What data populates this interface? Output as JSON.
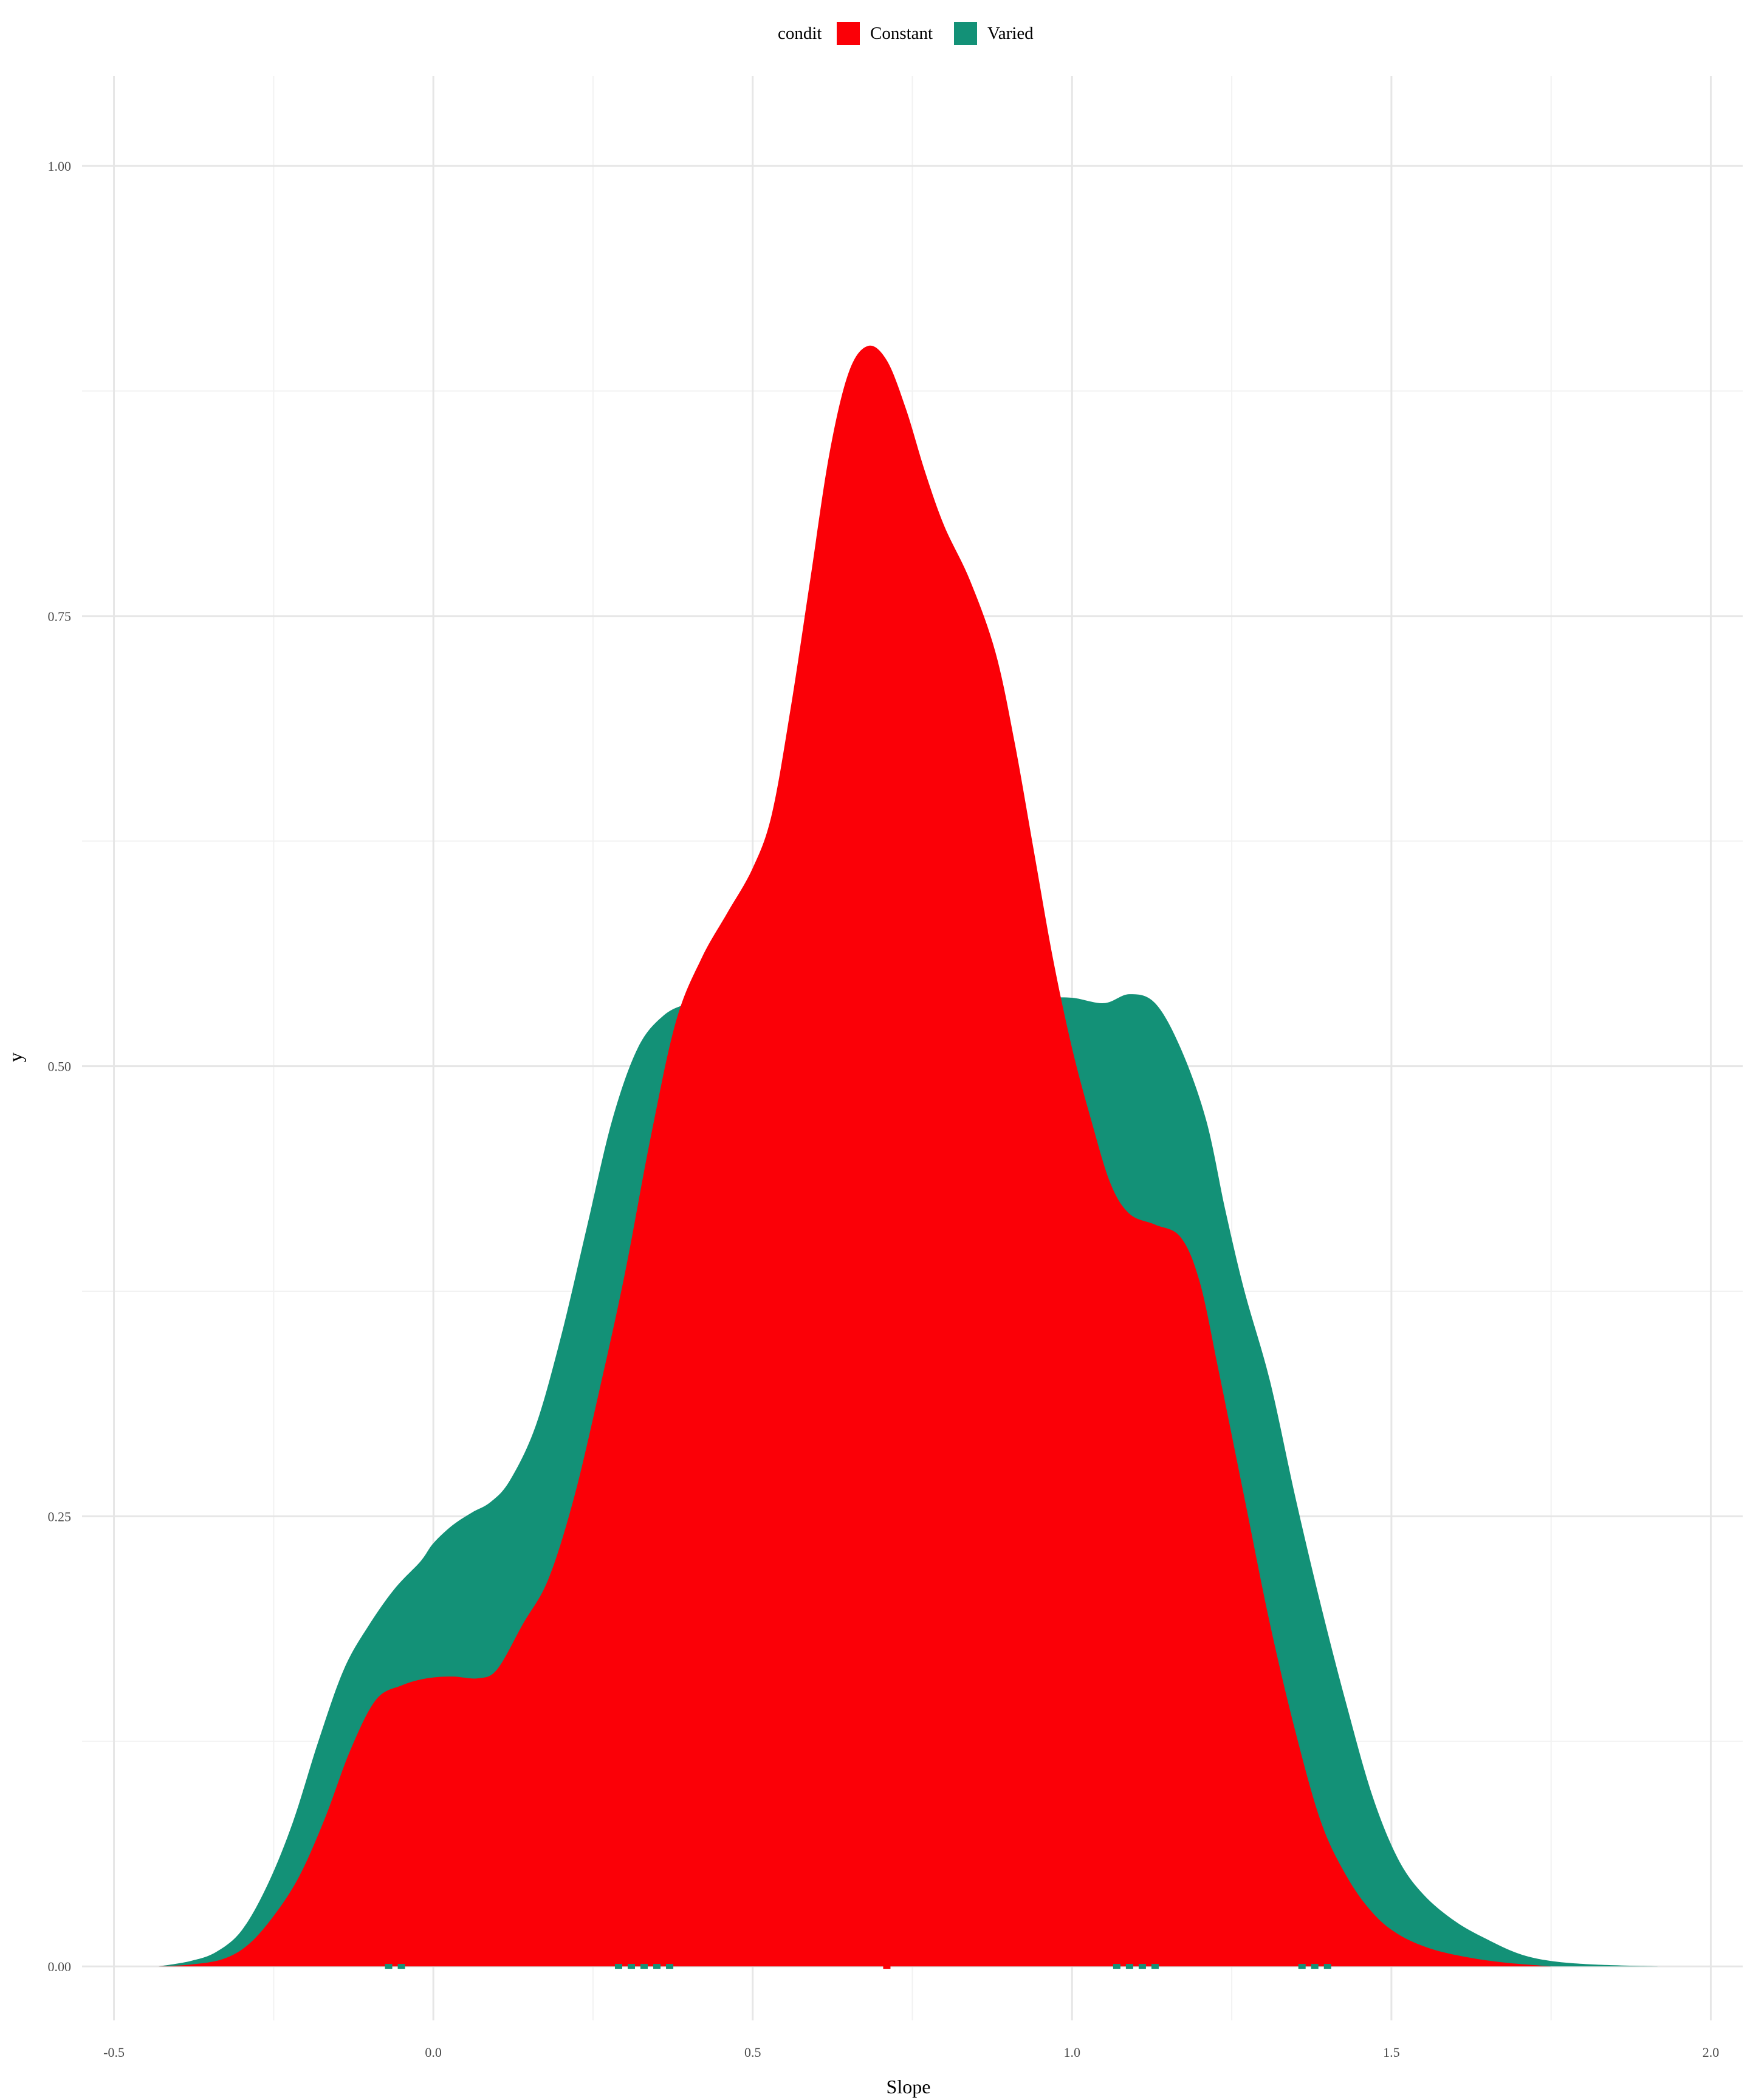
{
  "chart_data": {
    "type": "area",
    "title": "",
    "xlabel": "Slope",
    "ylabel": "y",
    "xlim": [
      -0.55,
      2.05
    ],
    "ylim": [
      -0.03,
      1.05
    ],
    "x_ticks": [
      -0.5,
      0.0,
      0.5,
      1.0,
      1.5,
      2.0
    ],
    "x_tick_labels": [
      "-0.5",
      "0.0",
      "0.5",
      "1.0",
      "1.5",
      "2.0"
    ],
    "y_ticks": [
      0.0,
      0.25,
      0.5,
      0.75,
      1.0
    ],
    "y_tick_labels": [
      "0.00",
      "0.25",
      "0.50",
      "0.75",
      "1.00"
    ],
    "grid": true,
    "legend": {
      "title": "condit",
      "position": "top",
      "entries": [
        {
          "label": "Constant",
          "color": "#fb0007"
        },
        {
          "label": "Varied",
          "color": "#139177"
        }
      ]
    },
    "series": [
      {
        "name": "Varied",
        "color": "#139177",
        "points": [
          [
            -0.43,
            0.0
          ],
          [
            -0.38,
            0.003
          ],
          [
            -0.34,
            0.008
          ],
          [
            -0.3,
            0.02
          ],
          [
            -0.26,
            0.045
          ],
          [
            -0.22,
            0.08
          ],
          [
            -0.18,
            0.125
          ],
          [
            -0.14,
            0.165
          ],
          [
            -0.1,
            0.19
          ],
          [
            -0.06,
            0.21
          ],
          [
            -0.02,
            0.225
          ],
          [
            0.0,
            0.235
          ],
          [
            0.03,
            0.245
          ],
          [
            0.06,
            0.252
          ],
          [
            0.09,
            0.258
          ],
          [
            0.12,
            0.27
          ],
          [
            0.16,
            0.3
          ],
          [
            0.2,
            0.35
          ],
          [
            0.24,
            0.41
          ],
          [
            0.28,
            0.47
          ],
          [
            0.32,
            0.51
          ],
          [
            0.36,
            0.528
          ],
          [
            0.4,
            0.535
          ],
          [
            0.45,
            0.54
          ],
          [
            0.5,
            0.545
          ],
          [
            0.55,
            0.548
          ],
          [
            0.6,
            0.55
          ],
          [
            0.65,
            0.548
          ],
          [
            0.7,
            0.545
          ],
          [
            0.75,
            0.542
          ],
          [
            0.8,
            0.54
          ],
          [
            0.85,
            0.539
          ],
          [
            0.9,
            0.538
          ],
          [
            0.95,
            0.538
          ],
          [
            1.0,
            0.538
          ],
          [
            1.05,
            0.535
          ],
          [
            1.09,
            0.54
          ],
          [
            1.13,
            0.535
          ],
          [
            1.17,
            0.51
          ],
          [
            1.21,
            0.47
          ],
          [
            1.24,
            0.42
          ],
          [
            1.27,
            0.375
          ],
          [
            1.31,
            0.325
          ],
          [
            1.35,
            0.26
          ],
          [
            1.39,
            0.2
          ],
          [
            1.43,
            0.145
          ],
          [
            1.47,
            0.095
          ],
          [
            1.51,
            0.06
          ],
          [
            1.55,
            0.04
          ],
          [
            1.6,
            0.025
          ],
          [
            1.65,
            0.015
          ],
          [
            1.7,
            0.007
          ],
          [
            1.75,
            0.003
          ],
          [
            1.82,
            0.001
          ],
          [
            1.92,
            0.0
          ]
        ]
      },
      {
        "name": "Constant",
        "color": "#fb0007",
        "points": [
          [
            -0.43,
            0.0
          ],
          [
            -0.38,
            0.001
          ],
          [
            -0.33,
            0.004
          ],
          [
            -0.29,
            0.012
          ],
          [
            -0.25,
            0.028
          ],
          [
            -0.21,
            0.05
          ],
          [
            -0.17,
            0.082
          ],
          [
            -0.13,
            0.12
          ],
          [
            -0.09,
            0.148
          ],
          [
            -0.05,
            0.156
          ],
          [
            -0.01,
            0.16
          ],
          [
            0.03,
            0.161
          ],
          [
            0.07,
            0.16
          ],
          [
            0.1,
            0.165
          ],
          [
            0.14,
            0.19
          ],
          [
            0.18,
            0.215
          ],
          [
            0.22,
            0.26
          ],
          [
            0.26,
            0.32
          ],
          [
            0.3,
            0.385
          ],
          [
            0.34,
            0.46
          ],
          [
            0.38,
            0.525
          ],
          [
            0.42,
            0.56
          ],
          [
            0.46,
            0.585
          ],
          [
            0.5,
            0.61
          ],
          [
            0.53,
            0.64
          ],
          [
            0.56,
            0.7
          ],
          [
            0.59,
            0.77
          ],
          [
            0.62,
            0.84
          ],
          [
            0.65,
            0.885
          ],
          [
            0.68,
            0.9
          ],
          [
            0.71,
            0.892
          ],
          [
            0.74,
            0.865
          ],
          [
            0.77,
            0.83
          ],
          [
            0.8,
            0.8
          ],
          [
            0.84,
            0.77
          ],
          [
            0.88,
            0.73
          ],
          [
            0.91,
            0.68
          ],
          [
            0.94,
            0.62
          ],
          [
            0.97,
            0.56
          ],
          [
            1.0,
            0.51
          ],
          [
            1.03,
            0.47
          ],
          [
            1.06,
            0.435
          ],
          [
            1.09,
            0.418
          ],
          [
            1.13,
            0.412
          ],
          [
            1.17,
            0.405
          ],
          [
            1.2,
            0.38
          ],
          [
            1.23,
            0.33
          ],
          [
            1.27,
            0.26
          ],
          [
            1.31,
            0.19
          ],
          [
            1.35,
            0.13
          ],
          [
            1.39,
            0.08
          ],
          [
            1.43,
            0.05
          ],
          [
            1.47,
            0.03
          ],
          [
            1.51,
            0.018
          ],
          [
            1.56,
            0.01
          ],
          [
            1.62,
            0.005
          ],
          [
            1.68,
            0.002
          ],
          [
            1.75,
            0.0
          ]
        ]
      }
    ],
    "rug": {
      "Varied": [
        -0.07,
        -0.05,
        0.29,
        0.31,
        0.33,
        0.35,
        0.37,
        1.07,
        1.09,
        1.11,
        1.13,
        1.36,
        1.38,
        1.4
      ],
      "Constant": [
        0.71
      ]
    }
  }
}
